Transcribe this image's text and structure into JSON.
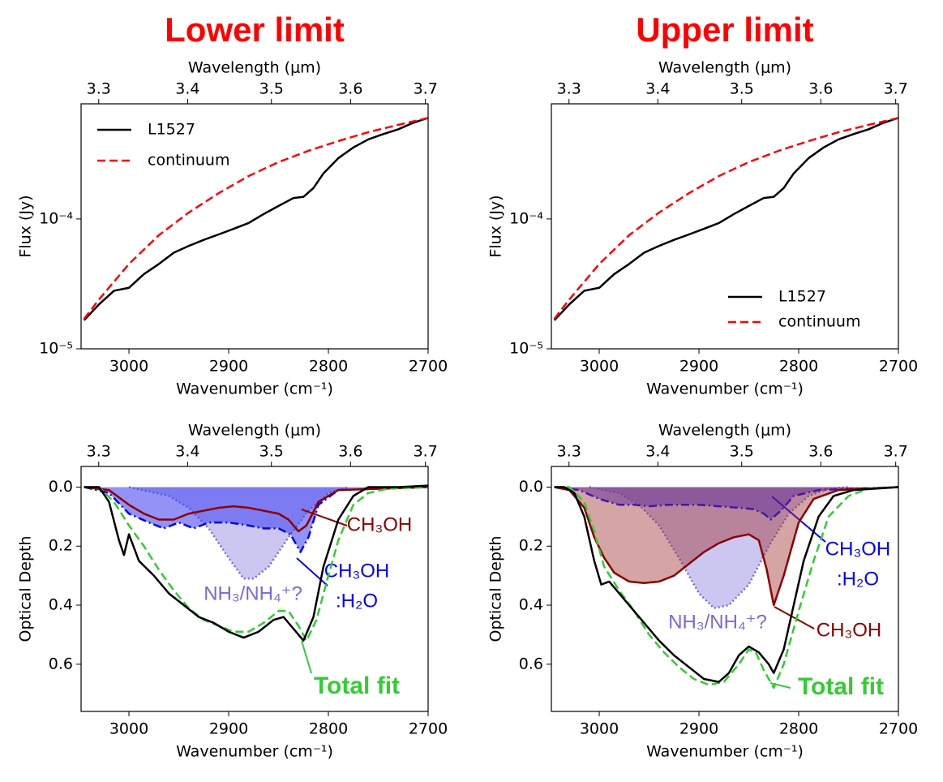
{
  "chart_data": [
    {
      "type": "line",
      "title": "Lower limit",
      "xlabel": "Wavenumber (cm⁻¹)",
      "x2label": "Wavelength (μm)",
      "ylabel": "Flux (Jy)",
      "xlim": [
        3048,
        2700
      ],
      "xticks": [
        3000,
        2900,
        2800,
        2700
      ],
      "x2ticks": [
        3.3,
        3.4,
        3.5,
        3.6,
        3.7
      ],
      "ylim": [
        1e-05,
        0.00077
      ],
      "yscale": "log",
      "yticks": [
        {
          "value": 1e-05,
          "label": "10⁻⁵"
        },
        {
          "value": 0.0001,
          "label": "10⁻⁴"
        }
      ],
      "legend": "upper left",
      "series": [
        {
          "name": "L1527",
          "color": "#000000",
          "linestyle": "solid",
          "x": [
            3045,
            3030,
            3015,
            3000,
            2985,
            2970,
            2955,
            2940,
            2925,
            2910,
            2895,
            2880,
            2865,
            2850,
            2835,
            2825,
            2815,
            2805,
            2790,
            2775,
            2760,
            2745,
            2730,
            2715,
            2700
          ],
          "values": [
            1.66e-05,
            2.2e-05,
            2.8e-05,
            2.95e-05,
            3.76e-05,
            4.5e-05,
            5.5e-05,
            6.2e-05,
            6.9e-05,
            7.6e-05,
            8.4e-05,
            9.3e-05,
            0.000109,
            0.000126,
            0.000145,
            0.000148,
            0.000173,
            0.000224,
            0.000294,
            0.000355,
            0.00041,
            0.00045,
            0.00049,
            0.00055,
            0.0006
          ]
        },
        {
          "name": "continuum",
          "color": "#ff0000",
          "linestyle": "dashed",
          "x": [
            3045,
            3030,
            3000,
            2970,
            2940,
            2910,
            2880,
            2850,
            2820,
            2790,
            2760,
            2730,
            2700
          ],
          "values": [
            1.7e-05,
            2.4e-05,
            4.5e-05,
            7.5e-05,
            0.000112,
            0.000158,
            0.000214,
            0.000274,
            0.000335,
            0.000398,
            0.000466,
            0.00053,
            0.0006
          ]
        }
      ]
    },
    {
      "type": "line",
      "title": "Upper limit",
      "xlabel": "Wavenumber (cm⁻¹)",
      "x2label": "Wavelength (μm)",
      "ylabel": "Flux (Jy)",
      "xlim": [
        3048,
        2700
      ],
      "xticks": [
        3000,
        2900,
        2800,
        2700
      ],
      "x2ticks": [
        3.3,
        3.4,
        3.5,
        3.6,
        3.7
      ],
      "ylim": [
        1e-05,
        0.00077
      ],
      "yscale": "log",
      "yticks": [
        {
          "value": 1e-05,
          "label": "10⁻⁵"
        },
        {
          "value": 0.0001,
          "label": "10⁻⁴"
        }
      ],
      "legend": "lower right",
      "series": [
        {
          "name": "L1527",
          "color": "#000000",
          "linestyle": "solid",
          "x": [
            3045,
            3030,
            3015,
            3000,
            2985,
            2970,
            2955,
            2940,
            2925,
            2910,
            2895,
            2880,
            2865,
            2850,
            2835,
            2825,
            2815,
            2805,
            2790,
            2775,
            2760,
            2745,
            2730,
            2715,
            2700
          ],
          "values": [
            1.66e-05,
            2.2e-05,
            2.8e-05,
            2.95e-05,
            3.76e-05,
            4.5e-05,
            5.5e-05,
            6.2e-05,
            6.9e-05,
            7.6e-05,
            8.4e-05,
            9.3e-05,
            0.000109,
            0.000126,
            0.000145,
            0.000148,
            0.000173,
            0.000224,
            0.000294,
            0.000355,
            0.00041,
            0.00045,
            0.00049,
            0.00055,
            0.0006
          ]
        },
        {
          "name": "continuum",
          "color": "#ff0000",
          "linestyle": "dashed",
          "x": [
            3045,
            3030,
            3000,
            2970,
            2940,
            2910,
            2880,
            2850,
            2820,
            2790,
            2760,
            2730,
            2700
          ],
          "values": [
            1.7e-05,
            2.4e-05,
            4.5e-05,
            7.5e-05,
            0.000112,
            0.000158,
            0.000214,
            0.000274,
            0.000335,
            0.000398,
            0.000466,
            0.00053,
            0.0006
          ]
        }
      ]
    },
    {
      "type": "line",
      "xlabel": "Wavenumber (cm⁻¹)",
      "x2label": "Wavelength (μm)",
      "ylabel": "Optical Depth",
      "xlim": [
        3048,
        2700
      ],
      "xticks": [
        3000,
        2900,
        2800,
        2700
      ],
      "x2ticks": [
        3.3,
        3.4,
        3.5,
        3.6,
        3.7
      ],
      "ylim": [
        -0.07,
        0.76
      ],
      "yinvert": true,
      "yticks": [
        {
          "value": 0,
          "label": "0.0"
        },
        0.2,
        0.4,
        0.6
      ],
      "series": [
        {
          "name": "NH₃/NH₄⁺?",
          "color": "#7b68dd",
          "fill": "#8a80e070",
          "linestyle": "dotted",
          "x": [
            3000,
            2960,
            2940,
            2920,
            2900,
            2885,
            2875,
            2860,
            2840,
            2820,
            2800,
            2780
          ],
          "values": [
            0,
            0.03,
            0.07,
            0.14,
            0.24,
            0.31,
            0.31,
            0.27,
            0.17,
            0.08,
            0.02,
            0
          ]
        },
        {
          "name": [
            "CH₃OH",
            ":H₂O"
          ],
          "color": "#0000ff",
          "fill": "#4040f090",
          "linestyle": "dashdot",
          "x": [
            3045,
            3020,
            3000,
            2980,
            2965,
            2950,
            2935,
            2920,
            2900,
            2880,
            2865,
            2850,
            2838,
            2828,
            2820,
            2810,
            2790,
            2700
          ],
          "values": [
            0,
            0.02,
            0.09,
            0.12,
            0.14,
            0.12,
            0.14,
            0.12,
            0.12,
            0.13,
            0.14,
            0.14,
            0.16,
            0.22,
            0.17,
            0.06,
            0.01,
            0
          ]
        },
        {
          "name": "CH₃OH",
          "color": "#8b0000",
          "linestyle": "solid",
          "x": [
            3045,
            3020,
            3000,
            2985,
            2970,
            2955,
            2940,
            2925,
            2910,
            2895,
            2880,
            2865,
            2850,
            2840,
            2830,
            2822,
            2810,
            2790,
            2700
          ],
          "values": [
            0,
            0.01,
            0.06,
            0.09,
            0.11,
            0.11,
            0.09,
            0.08,
            0.07,
            0.065,
            0.07,
            0.08,
            0.09,
            0.11,
            0.15,
            0.13,
            0.05,
            0.01,
            0
          ]
        },
        {
          "name": "Total fit",
          "color": "#33cc33",
          "linestyle": "dashed",
          "x": [
            3045,
            3030,
            3015,
            3000,
            2985,
            2970,
            2955,
            2940,
            2925,
            2910,
            2895,
            2880,
            2865,
            2850,
            2840,
            2830,
            2822,
            2812,
            2800,
            2790,
            2775,
            2760,
            2740,
            2700
          ],
          "values": [
            0,
            0,
            0.05,
            0.13,
            0.2,
            0.28,
            0.35,
            0.41,
            0.45,
            0.47,
            0.49,
            0.49,
            0.46,
            0.42,
            0.42,
            0.47,
            0.52,
            0.45,
            0.3,
            0.18,
            0.06,
            0.02,
            0.005,
            0
          ]
        },
        {
          "color": "#000000",
          "linestyle": "solid",
          "x": [
            3045,
            3030,
            3020,
            3010,
            3005,
            3000,
            2990,
            2975,
            2960,
            2945,
            2930,
            2915,
            2900,
            2885,
            2870,
            2855,
            2845,
            2835,
            2825,
            2815,
            2805,
            2790,
            2775,
            2760,
            2730,
            2700
          ],
          "values": [
            0,
            0,
            0.05,
            0.18,
            0.23,
            0.16,
            0.25,
            0.3,
            0.36,
            0.4,
            0.44,
            0.46,
            0.49,
            0.51,
            0.49,
            0.45,
            0.44,
            0.48,
            0.52,
            0.44,
            0.27,
            0.11,
            0.03,
            0,
            0,
            -0.005
          ]
        }
      ]
    },
    {
      "type": "line",
      "xlabel": "Wavenumber (cm⁻¹)",
      "x2label": "Wavelength (μm)",
      "ylabel": "Optical Depth",
      "xlim": [
        3048,
        2700
      ],
      "xticks": [
        3000,
        2900,
        2800,
        2700
      ],
      "x2ticks": [
        3.3,
        3.4,
        3.5,
        3.6,
        3.7
      ],
      "ylim": [
        -0.07,
        0.76
      ],
      "yinvert": true,
      "yticks": [
        {
          "value": 0,
          "label": "0.0"
        },
        0.2,
        0.4,
        0.6
      ],
      "series": [
        {
          "name": "NH₃/NH₄⁺?",
          "color": "#7b68dd",
          "fill": "#8a80e070",
          "linestyle": "dotted",
          "x": [
            3010,
            2980,
            2960,
            2940,
            2920,
            2900,
            2885,
            2870,
            2850,
            2830,
            2810,
            2790,
            2770,
            2750
          ],
          "values": [
            0,
            0.02,
            0.06,
            0.13,
            0.24,
            0.36,
            0.41,
            0.4,
            0.33,
            0.2,
            0.09,
            0.03,
            0.005,
            0
          ]
        },
        {
          "name": [
            "CH₃OH",
            ":H₂O"
          ],
          "color": "#0000ff",
          "fill": "#4040f090",
          "linestyle": "dashdot",
          "x": [
            3045,
            3020,
            3000,
            2980,
            2965,
            2950,
            2930,
            2900,
            2880,
            2860,
            2845,
            2835,
            2828,
            2818,
            2805,
            2780,
            2700
          ],
          "values": [
            0,
            0.01,
            0.04,
            0.06,
            0.06,
            0.065,
            0.06,
            0.06,
            0.065,
            0.07,
            0.075,
            0.09,
            0.11,
            0.08,
            0.03,
            0.01,
            0
          ]
        },
        {
          "name": "CH₃OH",
          "color": "#8b0000",
          "fill": "#a0303070",
          "linestyle": "solid",
          "x": [
            3045,
            3030,
            3015,
            3005,
            2995,
            2985,
            2970,
            2955,
            2940,
            2925,
            2910,
            2895,
            2880,
            2865,
            2850,
            2840,
            2832,
            2825,
            2815,
            2800,
            2785,
            2760,
            2700
          ],
          "values": [
            0,
            0.01,
            0.07,
            0.17,
            0.24,
            0.29,
            0.32,
            0.325,
            0.32,
            0.3,
            0.26,
            0.22,
            0.19,
            0.17,
            0.16,
            0.18,
            0.28,
            0.4,
            0.3,
            0.12,
            0.04,
            0.01,
            0
          ]
        },
        {
          "name": "Total fit",
          "color": "#33cc33",
          "linestyle": "dashed",
          "x": [
            3045,
            3030,
            3015,
            3005,
            2995,
            2980,
            2965,
            2950,
            2935,
            2920,
            2905,
            2890,
            2875,
            2860,
            2850,
            2843,
            2835,
            2825,
            2815,
            2800,
            2785,
            2770,
            2750,
            2730,
            2700
          ],
          "values": [
            0,
            0,
            0.05,
            0.15,
            0.27,
            0.35,
            0.42,
            0.5,
            0.56,
            0.61,
            0.65,
            0.67,
            0.66,
            0.6,
            0.55,
            0.56,
            0.62,
            0.68,
            0.6,
            0.42,
            0.25,
            0.1,
            0.03,
            0.005,
            0
          ]
        },
        {
          "color": "#000000",
          "linestyle": "solid",
          "x": [
            3045,
            3035,
            3025,
            3015,
            3005,
            2998,
            2990,
            2980,
            2970,
            2955,
            2940,
            2925,
            2910,
            2895,
            2880,
            2870,
            2860,
            2850,
            2840,
            2830,
            2825,
            2815,
            2805,
            2795,
            2780,
            2765,
            2745,
            2700
          ],
          "values": [
            0,
            0,
            0.02,
            0.1,
            0.25,
            0.33,
            0.32,
            0.36,
            0.4,
            0.46,
            0.52,
            0.57,
            0.61,
            0.65,
            0.66,
            0.63,
            0.57,
            0.54,
            0.56,
            0.6,
            0.63,
            0.55,
            0.4,
            0.25,
            0.1,
            0.03,
            0.01,
            0
          ]
        }
      ]
    }
  ]
}
